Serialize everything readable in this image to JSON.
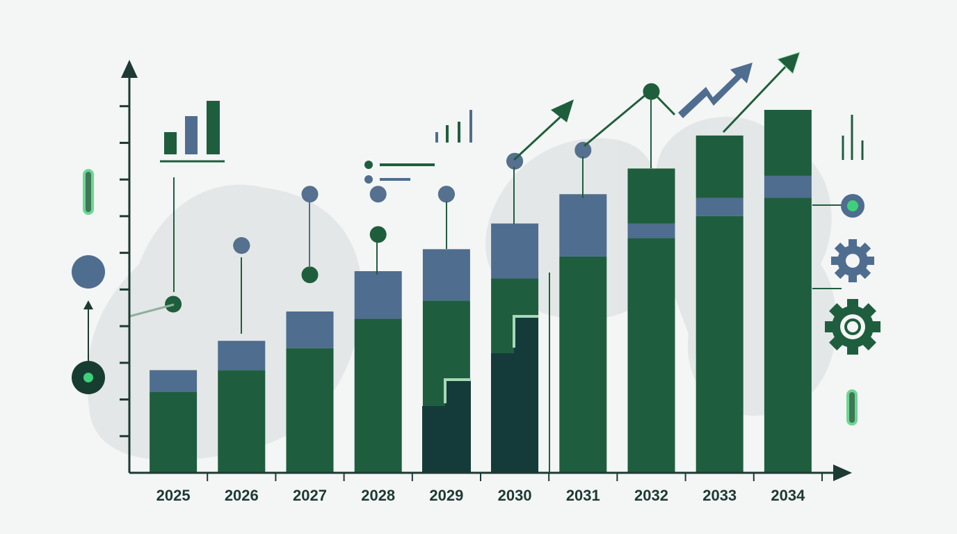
{
  "chart_data": {
    "type": "bar",
    "categories": [
      "2025",
      "2026",
      "2027",
      "2028",
      "2029",
      "2030",
      "2031",
      "2032",
      "2033",
      "2034"
    ],
    "series": [
      {
        "color": "#1e5e3e",
        "values": [
          2.2,
          2.8,
          3.4,
          4.2,
          4.7,
          5.3,
          5.9,
          6.4,
          7.0,
          7.5
        ]
      },
      {
        "color": "#4f6d8f",
        "values": [
          0.6,
          0.8,
          1.0,
          1.3,
          1.4,
          1.5,
          1.7,
          0.4,
          0.5,
          0.6
        ]
      },
      {
        "color": "#1e5e3e",
        "values": [
          null,
          null,
          null,
          null,
          null,
          null,
          null,
          1.5,
          1.7,
          1.8
        ]
      }
    ],
    "lines": [
      {
        "color": "#1f5e3c",
        "values": [
          4.6,
          6.2,
          5.4,
          6.5,
          7.6,
          8.5,
          null,
          10.4,
          null,
          null
        ]
      },
      {
        "color": "#56708f",
        "values": [
          null,
          6.2,
          7.6,
          7.6,
          7.6,
          8.5,
          8.8,
          null,
          null,
          null
        ]
      }
    ],
    "ylim": [
      0,
      11
    ],
    "yticks": [
      1,
      2,
      3,
      4,
      5,
      6,
      7,
      8,
      9,
      10
    ]
  }
}
